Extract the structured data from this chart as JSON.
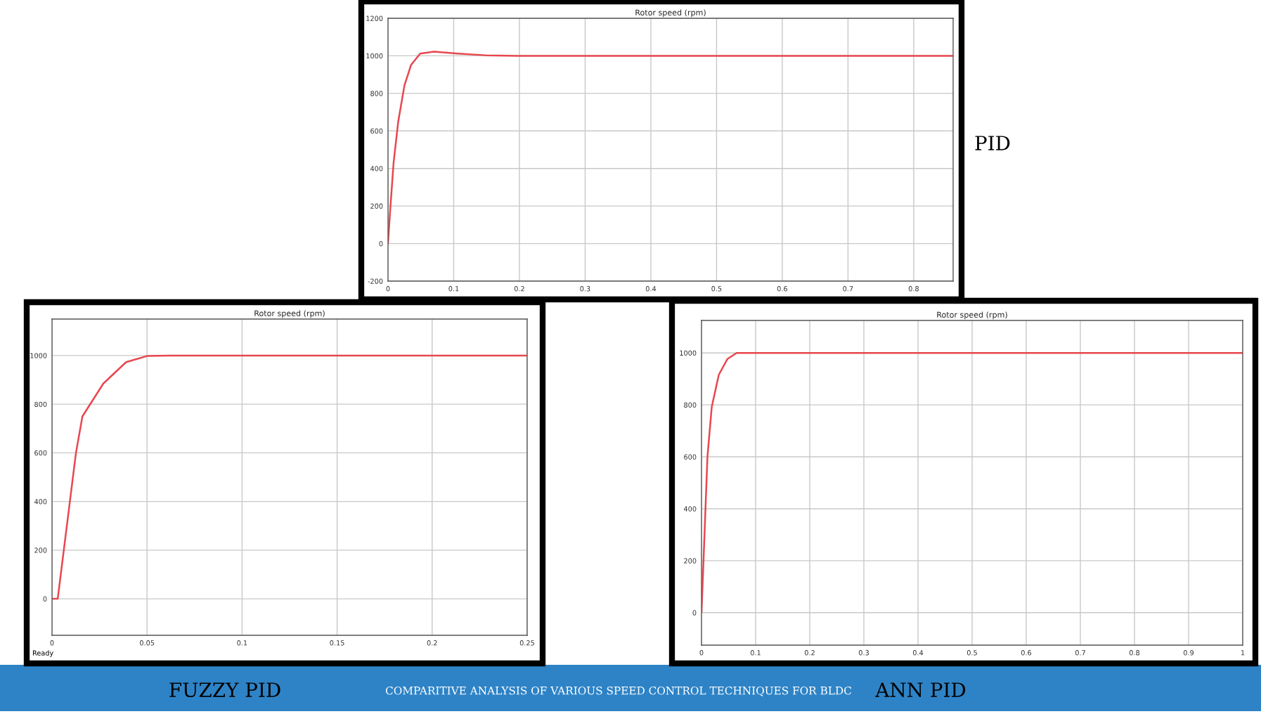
{
  "chart_data": [
    {
      "type": "line",
      "title": "Rotor speed (rpm)",
      "x": [
        0,
        0.0035,
        0.0085,
        0.0155,
        0.025,
        0.035,
        0.049,
        0.07,
        0.106,
        0.148,
        0.197,
        0.86
      ],
      "values": [
        0,
        187,
        430,
        648,
        842,
        951,
        1012,
        1022,
        1012,
        1003,
        1000,
        1000
      ],
      "color": "#e8474f",
      "xlim": [
        0,
        0.86
      ],
      "xticks": [
        0,
        0.1,
        0.2,
        0.3,
        0.4,
        0.5,
        0.6,
        0.7,
        0.8
      ],
      "ylim": [
        -200,
        1200
      ],
      "yticks": [
        -200,
        0,
        200,
        400,
        600,
        800,
        1000,
        1200
      ],
      "grid": true,
      "annotations": [
        "PID",
        "COMPARITIVE ANALYSIS OF VARIOUS SPEED CONTROL TECHNIQUES FOR BLDC"
      ]
    },
    {
      "type": "line",
      "title": "Rotor speed (rpm)",
      "x": [
        0,
        0.003,
        0.0126,
        0.016,
        0.027,
        0.039,
        0.05,
        0.062,
        0.25
      ],
      "values": [
        0,
        0,
        600,
        750,
        885,
        973,
        998,
        1000,
        1000
      ],
      "color": "#e8474f",
      "xlim": [
        0,
        0.25
      ],
      "xticks": [
        0,
        0.05,
        0.1,
        0.15,
        0.2,
        0.25
      ],
      "ylim": [
        -150,
        1150
      ],
      "yticks": [
        0,
        200,
        400,
        600,
        800,
        1000
      ],
      "grid": true,
      "annotations": [
        "FUZZY PID",
        "Ready"
      ]
    },
    {
      "type": "line",
      "title": "Rotor speed (rpm)",
      "x": [
        0,
        0.004,
        0.011,
        0.019,
        0.032,
        0.048,
        0.065,
        1
      ],
      "values": [
        0,
        215,
        600,
        793,
        916,
        977,
        1000,
        1000
      ],
      "color": "#e8474f",
      "xlim": [
        0,
        1
      ],
      "xticks": [
        0,
        0.1,
        0.2,
        0.3,
        0.4,
        0.5,
        0.6,
        0.7,
        0.8,
        0.9,
        1
      ],
      "ylim": [
        -125,
        1125
      ],
      "yticks": [
        0,
        200,
        400,
        600,
        800,
        1000
      ],
      "grid": true,
      "annotations": [
        "ANN PID"
      ]
    }
  ]
}
